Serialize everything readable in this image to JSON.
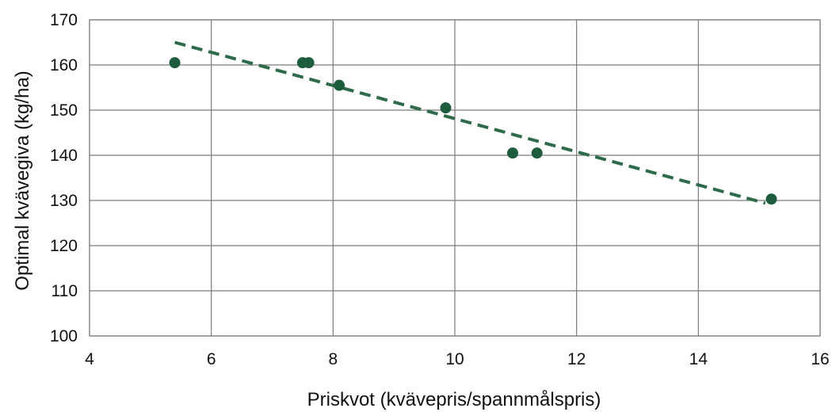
{
  "chart_data": {
    "type": "scatter",
    "title": "",
    "xlabel": "Priskvot (kvävepris/spannmålspris)",
    "ylabel": "Optimal kvävegiva (kg/ha)",
    "xlim": [
      4,
      16
    ],
    "ylim": [
      100,
      170
    ],
    "x_ticks": [
      4,
      6,
      8,
      10,
      12,
      14,
      16
    ],
    "y_ticks": [
      100,
      110,
      120,
      130,
      140,
      150,
      160,
      170
    ],
    "grid": true,
    "legend": "none",
    "colors": {
      "points": "#1e5c3e",
      "trendline": "#2e6b4a",
      "grid": "#7a7a7a",
      "text": "#111111"
    },
    "series": [
      {
        "points": [
          {
            "x": 5.4,
            "y": 160.5
          },
          {
            "x": 7.5,
            "y": 160.5
          },
          {
            "x": 7.6,
            "y": 160.5
          },
          {
            "x": 8.1,
            "y": 155.5
          },
          {
            "x": 9.85,
            "y": 150.5
          },
          {
            "x": 10.95,
            "y": 140.5
          },
          {
            "x": 11.35,
            "y": 140.5
          },
          {
            "x": 15.2,
            "y": 130.3
          }
        ]
      }
    ],
    "trendline": {
      "style": "dashed",
      "x_start": 5.4,
      "y_start": 165.0,
      "x_end": 15.1,
      "y_end": 129.4
    }
  }
}
